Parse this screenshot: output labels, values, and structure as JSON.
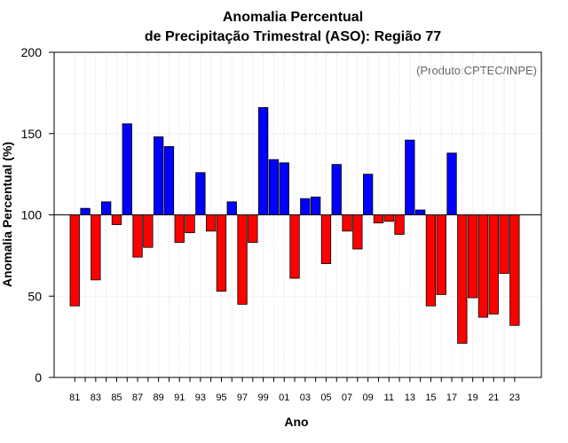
{
  "chart_data": {
    "type": "bar",
    "title_line1": "Anomalia Percentual",
    "title_line2": "de Precipitação Trimestral (ASO): Região 77",
    "credit": "(Produto:CPTEC/INPE)",
    "xlabel": "Ano",
    "ylabel": "Anomalia Percentual (%)",
    "ylim": [
      0,
      200
    ],
    "yticks": [
      "0",
      "50",
      "100",
      "150",
      "200"
    ],
    "baseline": 100,
    "grid": true,
    "colors": {
      "above": "#0000ff",
      "below": "#ff0000",
      "outline": "#000000"
    },
    "categories": [
      "1981",
      "1982",
      "1983",
      "1984",
      "1985",
      "1986",
      "1987",
      "1988",
      "1989",
      "1990",
      "1991",
      "1992",
      "1993",
      "1994",
      "1995",
      "1996",
      "1997",
      "1998",
      "1999",
      "2000",
      "2001",
      "2002",
      "2003",
      "2004",
      "2005",
      "2006",
      "2007",
      "2008",
      "2009",
      "2010",
      "2011",
      "2012",
      "2013",
      "2014",
      "2015",
      "2016",
      "2017",
      "2018",
      "2019",
      "2020",
      "2021",
      "2022",
      "2023"
    ],
    "xtick_labels": [
      "81",
      "83",
      "85",
      "87",
      "89",
      "91",
      "93",
      "95",
      "97",
      "99",
      "01",
      "03",
      "05",
      "07",
      "09",
      "11",
      "13",
      "15",
      "17",
      "19",
      "21",
      "23"
    ],
    "values": [
      44,
      104,
      60,
      108,
      94,
      156,
      74,
      80,
      148,
      142,
      83,
      89,
      126,
      90,
      53,
      108,
      45,
      83,
      166,
      134,
      132,
      61,
      110,
      111,
      70,
      131,
      90,
      79,
      125,
      95,
      96,
      88,
      146,
      103,
      44,
      51,
      138,
      21,
      49,
      37,
      39,
      64,
      32
    ]
  }
}
